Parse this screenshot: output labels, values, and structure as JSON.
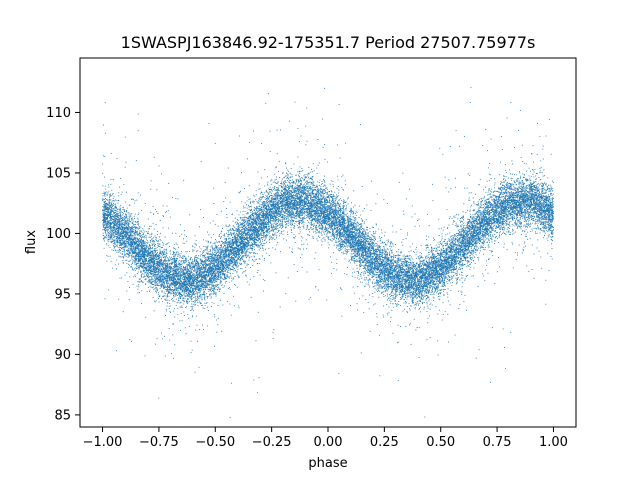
{
  "chart_data": {
    "type": "scatter",
    "title": "1SWASPJ163846.92-175351.7 Period 27507.75977s",
    "xlabel": "phase",
    "ylabel": "flux",
    "xlim": [
      -1.1,
      1.1
    ],
    "ylim": [
      84,
      114.5
    ],
    "x_ticks": [
      -1.0,
      -0.75,
      -0.5,
      -0.25,
      0.0,
      0.25,
      0.5,
      0.75,
      1.0
    ],
    "x_tick_labels": [
      "−1.00",
      "−0.75",
      "−0.50",
      "−0.25",
      "0.00",
      "0.25",
      "0.50",
      "0.75",
      "1.00"
    ],
    "y_ticks": [
      85,
      90,
      95,
      100,
      105,
      110
    ],
    "y_tick_labels": [
      "85",
      "90",
      "95",
      "100",
      "105",
      "110"
    ],
    "grid": false,
    "marker_color": "#1f77b4",
    "series": [
      {
        "x_range": [
          -1.0,
          1.0
        ],
        "trend": {
          "phase": [
            -1.0,
            -0.9,
            -0.8,
            -0.7,
            -0.6,
            -0.5,
            -0.4,
            -0.3,
            -0.2,
            -0.1,
            0.0,
            0.1,
            0.2,
            0.3,
            0.4,
            0.5,
            0.6,
            0.7,
            0.8,
            0.9,
            1.0
          ],
          "flux": [
            101.7,
            99.9,
            97.8,
            96.4,
            96.1,
            97.1,
            99.0,
            101.0,
            102.5,
            102.7,
            101.7,
            99.9,
            97.8,
            96.4,
            96.1,
            97.1,
            99.0,
            101.0,
            102.5,
            102.7,
            101.7
          ]
        },
        "scatter_sd": 1.0,
        "point_count": 22000,
        "outlier_count": 380
      }
    ]
  }
}
